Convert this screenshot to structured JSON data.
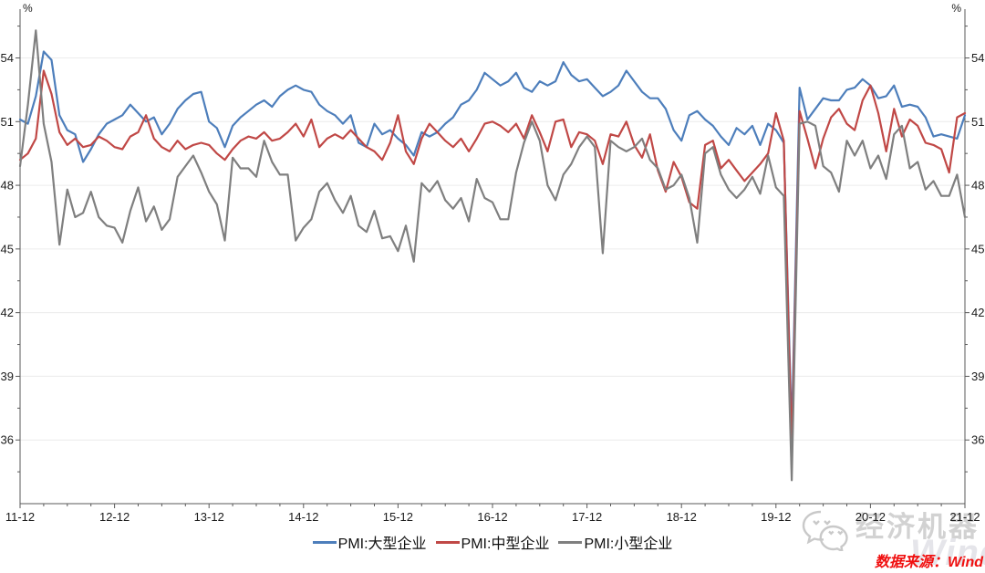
{
  "chart_data": {
    "type": "line",
    "title": "",
    "unit_label": "%",
    "grid": "horizontal-only",
    "legend_position": "bottom-center",
    "x_start": "2011-12",
    "x_end": "2021-12",
    "x_tick_labels": [
      "11-12",
      "12-12",
      "13-12",
      "14-12",
      "15-12",
      "16-12",
      "17-12",
      "18-12",
      "19-12",
      "20-12",
      "21-12"
    ],
    "y_ticks": [
      36,
      39,
      42,
      45,
      48,
      51,
      54
    ],
    "ylim": [
      33,
      56.3
    ],
    "series": [
      {
        "name": "PMI:大型企业",
        "color": "#4d7ebb",
        "values": [
          51.1,
          50.9,
          52.2,
          54.3,
          53.9,
          51.3,
          50.6,
          50.4,
          49.1,
          49.7,
          50.4,
          50.9,
          51.1,
          51.3,
          51.8,
          51.4,
          51.0,
          51.2,
          50.4,
          50.9,
          51.6,
          52.0,
          52.3,
          52.4,
          51.0,
          50.7,
          49.8,
          50.8,
          51.2,
          51.5,
          51.8,
          52.0,
          51.7,
          52.2,
          52.5,
          52.7,
          52.5,
          52.4,
          51.8,
          51.5,
          51.3,
          50.9,
          51.3,
          50.0,
          49.8,
          50.9,
          50.4,
          50.6,
          50.2,
          49.9,
          49.4,
          50.5,
          50.3,
          50.5,
          50.9,
          51.2,
          51.8,
          52.0,
          52.5,
          53.3,
          53.0,
          52.7,
          52.9,
          53.3,
          52.6,
          52.4,
          52.9,
          52.7,
          52.9,
          53.8,
          53.2,
          52.9,
          53.0,
          52.6,
          52.2,
          52.4,
          52.7,
          53.4,
          52.9,
          52.4,
          52.1,
          52.1,
          51.6,
          50.6,
          50.1,
          51.3,
          51.5,
          51.1,
          50.8,
          50.3,
          49.9,
          50.7,
          50.4,
          50.8,
          49.9,
          50.9,
          50.6,
          50.0,
          36.3,
          52.6,
          51.1,
          51.6,
          52.1,
          52.0,
          52.0,
          52.5,
          52.6,
          53.0,
          52.7,
          52.1,
          52.2,
          52.7,
          51.7,
          51.8,
          51.7,
          51.2,
          50.3,
          50.4,
          50.3,
          50.2,
          51.3
        ]
      },
      {
        "name": "PMI:中型企业",
        "color": "#c04846",
        "values": [
          49.2,
          49.5,
          50.2,
          53.4,
          52.3,
          50.5,
          49.9,
          50.2,
          49.8,
          49.9,
          50.3,
          50.1,
          49.8,
          49.7,
          50.3,
          50.5,
          51.3,
          50.2,
          49.8,
          49.6,
          50.1,
          49.7,
          49.9,
          50.0,
          49.9,
          49.5,
          49.2,
          49.7,
          50.1,
          50.3,
          50.2,
          50.5,
          50.1,
          50.2,
          50.5,
          50.9,
          50.3,
          51.1,
          49.8,
          50.2,
          50.4,
          50.2,
          50.6,
          50.2,
          49.8,
          49.6,
          49.2,
          50.0,
          51.3,
          49.6,
          49.0,
          50.2,
          50.9,
          50.5,
          50.1,
          49.8,
          50.2,
          49.6,
          50.2,
          50.9,
          51.0,
          50.8,
          50.5,
          50.9,
          50.2,
          51.3,
          50.5,
          49.6,
          51.0,
          51.1,
          49.8,
          50.5,
          50.4,
          50.1,
          49.0,
          50.4,
          50.3,
          51.0,
          49.9,
          49.3,
          50.4,
          48.7,
          47.7,
          49.1,
          48.4,
          47.2,
          46.9,
          49.9,
          50.1,
          48.8,
          49.2,
          48.7,
          48.2,
          48.6,
          49.0,
          49.5,
          51.4,
          50.1,
          35.5,
          51.5,
          50.2,
          48.8,
          50.2,
          51.2,
          51.6,
          50.9,
          50.6,
          52.0,
          52.7,
          51.4,
          49.6,
          51.6,
          50.3,
          51.1,
          50.8,
          50.0,
          49.9,
          49.7,
          48.6,
          51.2,
          51.4
        ]
      },
      {
        "name": "PMI:小型企业",
        "color": "#7f7f7f",
        "values": [
          48.9,
          51.8,
          55.3,
          50.9,
          49.1,
          45.2,
          47.8,
          46.5,
          46.7,
          47.7,
          46.5,
          46.1,
          46.0,
          45.3,
          46.8,
          47.9,
          46.3,
          47.0,
          45.9,
          46.4,
          48.4,
          48.9,
          49.4,
          48.6,
          47.7,
          47.1,
          45.4,
          49.3,
          48.8,
          48.8,
          48.4,
          50.1,
          49.1,
          48.5,
          48.5,
          45.4,
          46.0,
          46.4,
          47.7,
          48.1,
          47.3,
          46.7,
          47.5,
          46.1,
          45.8,
          46.8,
          45.5,
          45.6,
          44.9,
          46.1,
          44.4,
          48.1,
          47.7,
          48.2,
          47.3,
          46.9,
          47.4,
          46.3,
          48.3,
          47.4,
          47.2,
          46.4,
          46.4,
          48.6,
          50.0,
          51.0,
          50.1,
          48.0,
          47.3,
          48.5,
          49.0,
          49.8,
          50.3,
          49.8,
          44.8,
          50.1,
          49.8,
          49.6,
          49.8,
          50.2,
          49.2,
          48.8,
          47.8,
          48.0,
          48.5,
          47.4,
          45.3,
          49.5,
          49.8,
          48.5,
          47.8,
          47.4,
          47.8,
          48.4,
          47.6,
          49.4,
          47.9,
          47.5,
          34.1,
          50.9,
          51.0,
          50.8,
          48.9,
          48.6,
          47.7,
          50.1,
          49.4,
          50.1,
          48.8,
          49.4,
          48.3,
          50.4,
          50.8,
          48.8,
          49.1,
          47.8,
          48.2,
          47.5,
          47.5,
          48.5,
          46.5
        ]
      }
    ]
  },
  "footer": {
    "source_label": "数据来源：Wind",
    "source_color": "#f01010",
    "brand_watermark": "经济机器",
    "wind_watermark": "Wind",
    "watermark_color": "#d2d2d2"
  }
}
